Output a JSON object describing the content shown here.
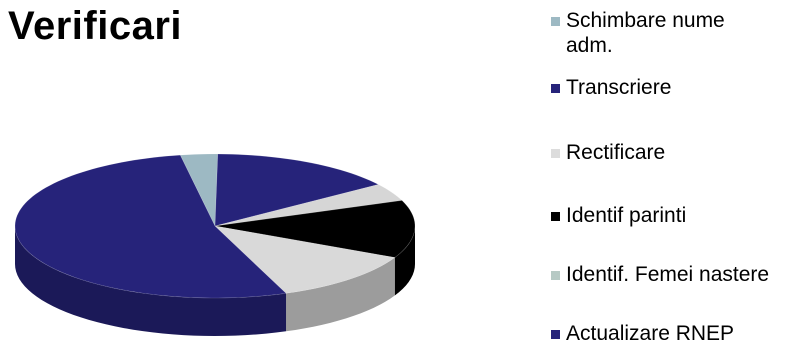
{
  "chart_data": {
    "type": "pie",
    "title": "Verificari",
    "series": [
      {
        "name": "Schimbare nume adm.",
        "value": 3,
        "color": "#9db9c3"
      },
      {
        "name": "Transcriere",
        "value": 15,
        "color": "#26237a"
      },
      {
        "name": "Rectificare",
        "value": 4,
        "color": "#d6d6d6"
      },
      {
        "name": "Identif parinti",
        "value": 13,
        "color": "#000000"
      },
      {
        "name": "Identif. Femei nastere",
        "value": 12,
        "color": "#d9d9d9"
      },
      {
        "name": "Actualizare RNEP",
        "value": 53,
        "color": "#26237a"
      }
    ],
    "legend_position": "right",
    "style": "3d"
  }
}
